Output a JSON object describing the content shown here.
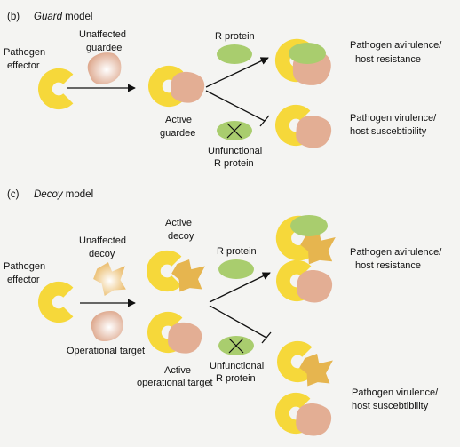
{
  "panel_b": {
    "letter": "(b)",
    "model_name": "Guard",
    "model_suffix": " model",
    "pathogen_effector": [
      "Pathogen",
      "effector"
    ],
    "unaffected_guardee": [
      "Unaffected",
      "guardee"
    ],
    "active_guardee": [
      "Active",
      "guardee"
    ],
    "r_protein": "R protein",
    "unfunctional_r_protein": [
      "Unfunctional",
      "R protein"
    ],
    "outcome_resistance": [
      "Pathogen avirulence/",
      "host resistance"
    ],
    "outcome_virulence": [
      "Pathogen virulence/",
      "host suscebtibility"
    ]
  },
  "panel_c": {
    "letter": "(c)",
    "model_name": "Decoy",
    "model_suffix": " model",
    "pathogen_effector": [
      "Pathogen",
      "effector"
    ],
    "unaffected_decoy": [
      "Unaffected",
      "decoy"
    ],
    "operational_target": "Operational target",
    "active_decoy": [
      "Active",
      "decoy"
    ],
    "active_operational_target": [
      "Active",
      "operational target"
    ],
    "r_protein": "R protein",
    "unfunctional_r_protein": [
      "Unfunctional",
      "R protein"
    ],
    "outcome_resistance": [
      "Pathogen avirulence/",
      "host resistance"
    ],
    "outcome_virulence": [
      "Pathogen virulence/",
      "host suscebtibility"
    ]
  },
  "colors": {
    "effector_yellow": "#f6d83a",
    "guardee_salmon": "#e3ae94",
    "r_protein_green": "#a9cd6e",
    "decoy_orange": "#e6b54f",
    "background": "#f4f4f2"
  }
}
